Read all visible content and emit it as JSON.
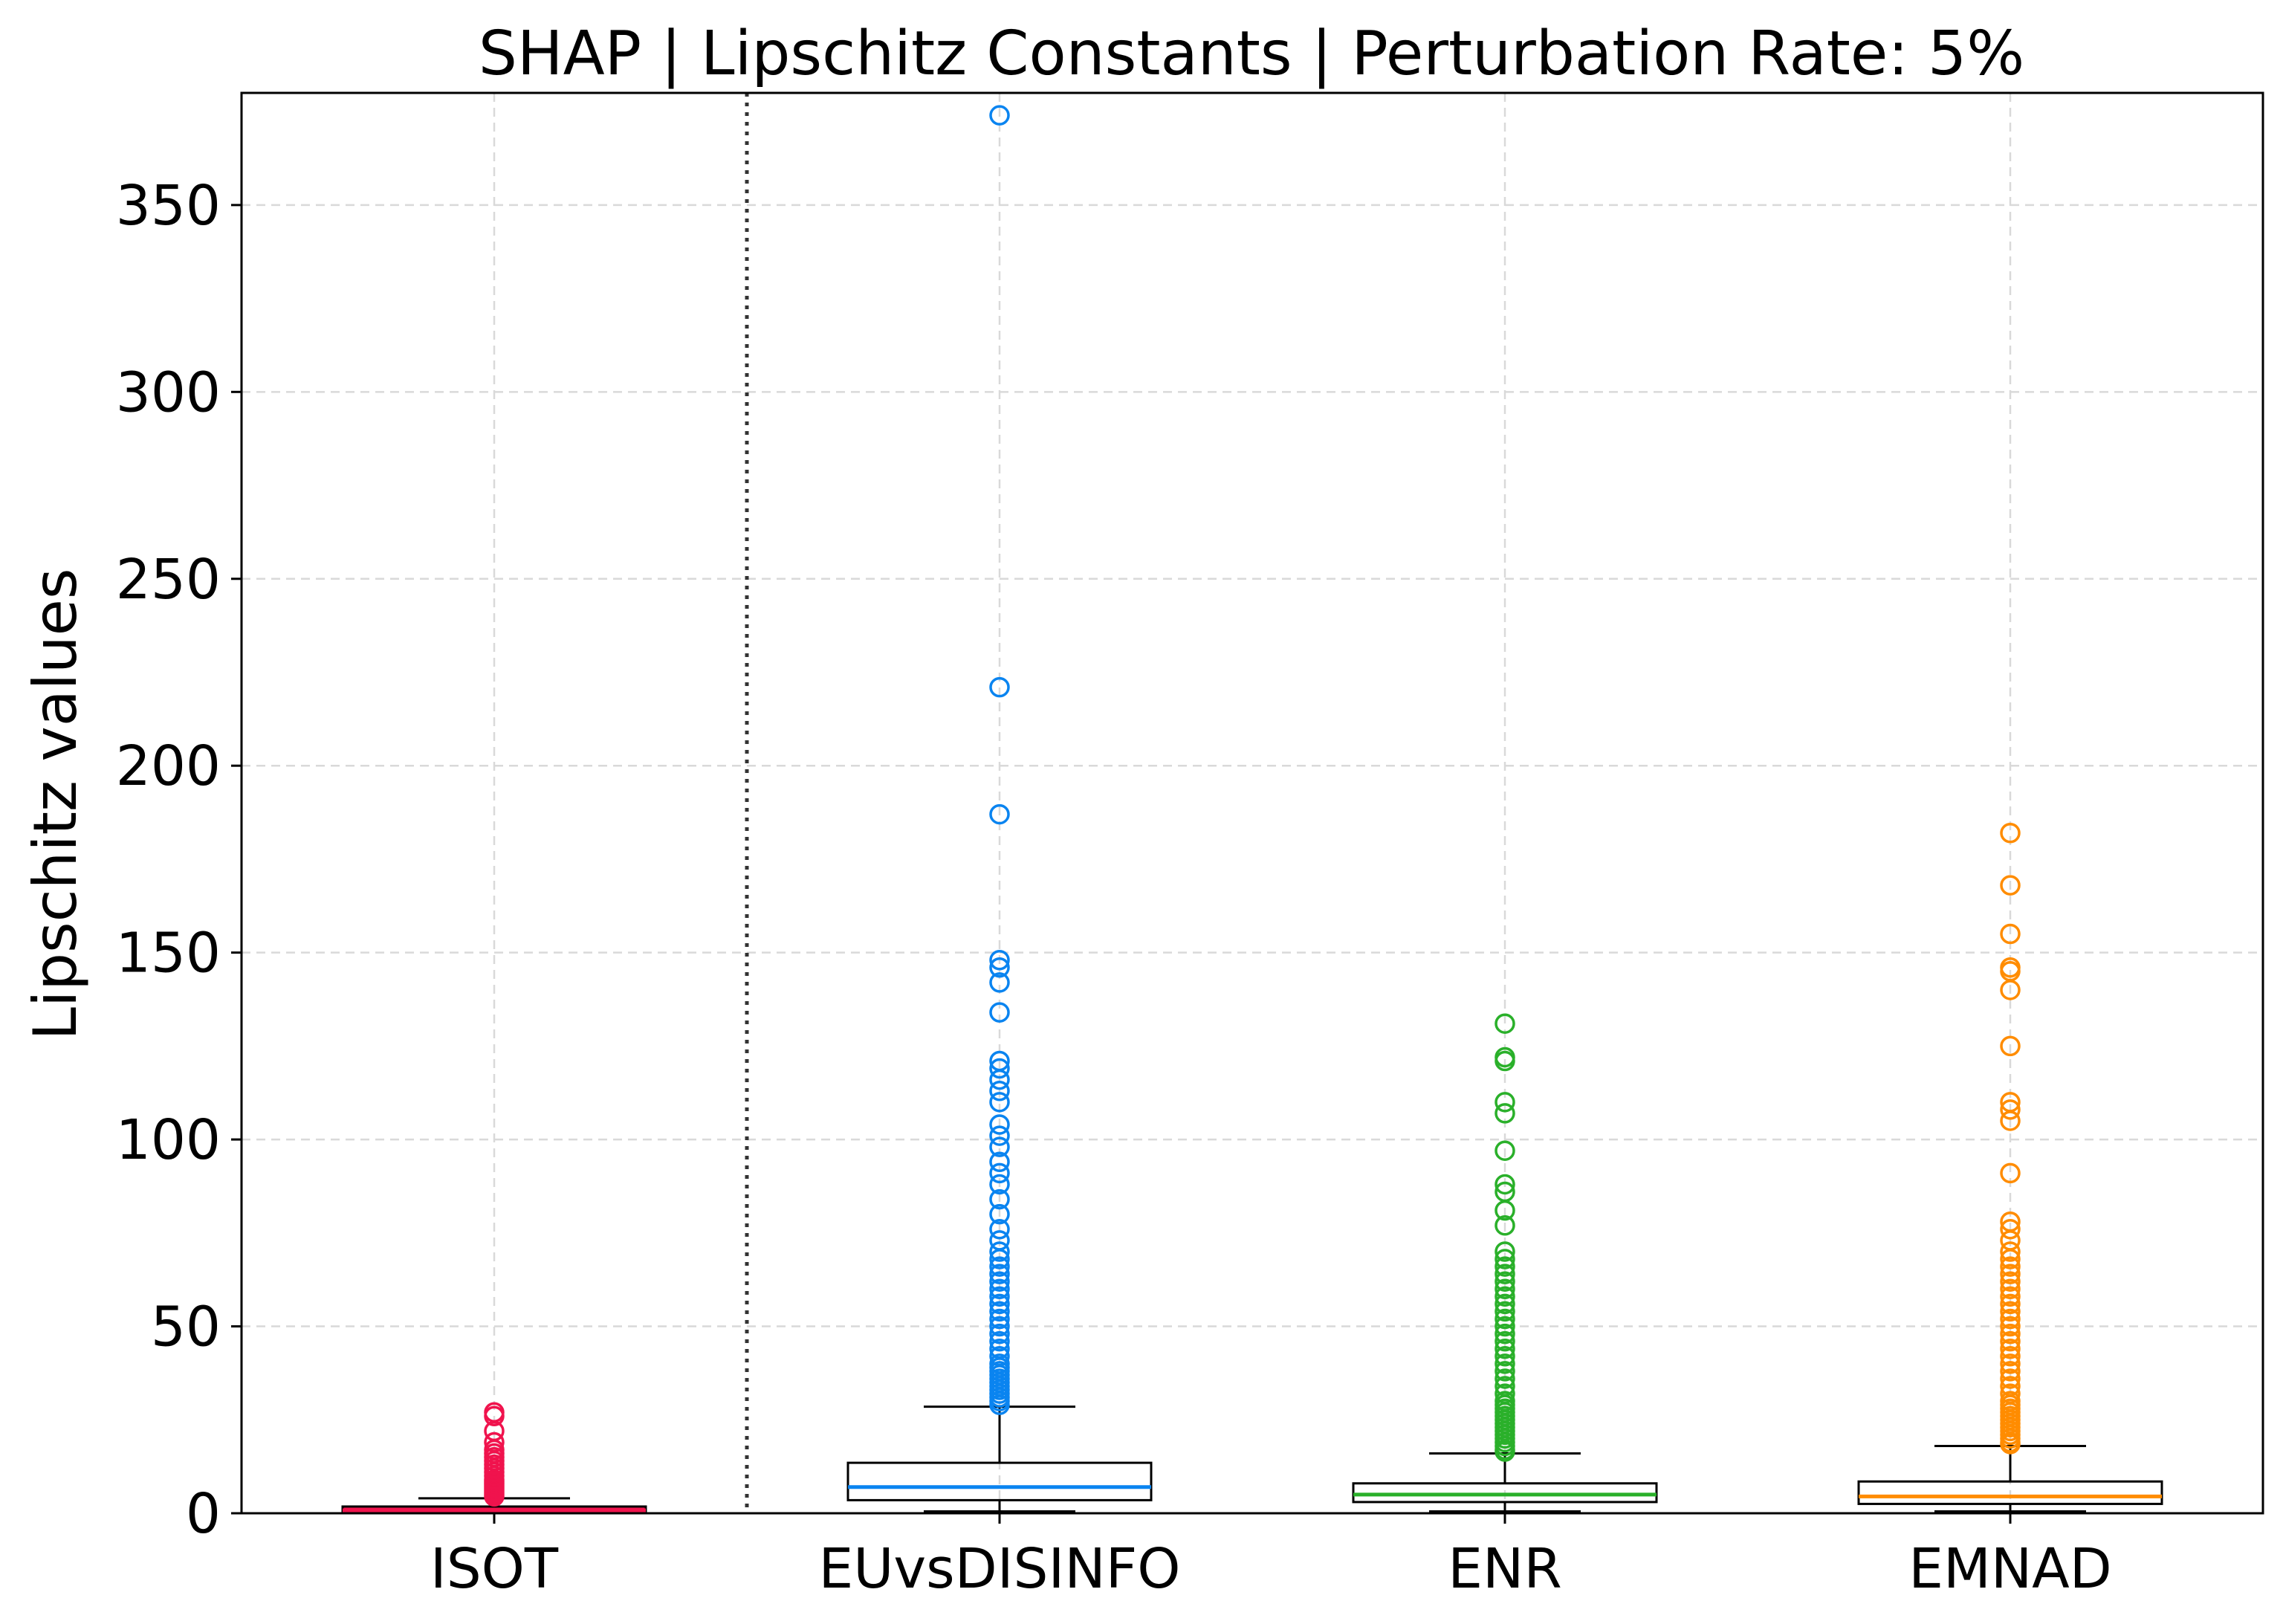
{
  "chart_data": {
    "type": "box",
    "title": "SHAP | Lipschitz Constants | Perturbation Rate: 5%",
    "xlabel": "",
    "ylabel": "Lipschitz values",
    "ylim": [
      0,
      380
    ],
    "yticks": [
      0,
      50,
      100,
      150,
      200,
      250,
      300,
      350
    ],
    "ytick_labels": [
      "0",
      "50",
      "100",
      "150",
      "200",
      "250",
      "300",
      "350"
    ],
    "grid": true,
    "separator_after_category": 0,
    "categories": [
      "ISOT",
      "EUvsDISINFO",
      "ENR",
      "EMNAD"
    ],
    "series": [
      {
        "category": "ISOT",
        "color": "#f0134d",
        "filled": true,
        "whisker_low": 0.0,
        "q1": 0.2,
        "median": 0.8,
        "q3": 1.8,
        "whisker_high": 4.0,
        "outliers": [
          4.5,
          5,
          5.5,
          6,
          6.5,
          7,
          7.5,
          8,
          8.5,
          9,
          10,
          11,
          12,
          13,
          14,
          15,
          16,
          17,
          19,
          22,
          26,
          27
        ]
      },
      {
        "category": "EUvsDISINFO",
        "color": "#0a84f0",
        "filled": false,
        "whisker_low": 0.5,
        "q1": 3.5,
        "median": 7.0,
        "q3": 13.5,
        "whisker_high": 28.5,
        "outliers": [
          29,
          30,
          31,
          32,
          33,
          34,
          35,
          36,
          37,
          38,
          39,
          40,
          42,
          44,
          46,
          48,
          50,
          52,
          54,
          56,
          58,
          60,
          62,
          64,
          66,
          68,
          70,
          73,
          76,
          80,
          84,
          88,
          91,
          94,
          98,
          101,
          104,
          110,
          113,
          116,
          119,
          121,
          134,
          142,
          146,
          148,
          187,
          221,
          374
        ]
      },
      {
        "category": "ENR",
        "color": "#2ab02a",
        "filled": false,
        "whisker_low": 0.5,
        "q1": 3.0,
        "median": 5.0,
        "q3": 8.0,
        "whisker_high": 16.0,
        "outliers": [
          16.5,
          17,
          18,
          19,
          20,
          21,
          22,
          23,
          24,
          25,
          26,
          27,
          28,
          29,
          30,
          32,
          34,
          36,
          38,
          40,
          42,
          44,
          46,
          48,
          50,
          52,
          54,
          56,
          58,
          60,
          62,
          64,
          66,
          68,
          70,
          77,
          81,
          86,
          88,
          97,
          107,
          110,
          121,
          122,
          131
        ]
      },
      {
        "category": "EMNAD",
        "color": "#ff8c00",
        "filled": false,
        "whisker_low": 0.5,
        "q1": 2.5,
        "median": 4.5,
        "q3": 8.5,
        "whisker_high": 18.0,
        "outliers": [
          18.5,
          19,
          20,
          21,
          22,
          23,
          24,
          25,
          26,
          27,
          28,
          29,
          30,
          32,
          34,
          36,
          38,
          40,
          42,
          44,
          46,
          48,
          50,
          52,
          54,
          56,
          58,
          60,
          62,
          64,
          66,
          68,
          70,
          73,
          76,
          78,
          91,
          105,
          108,
          110,
          125,
          140,
          145,
          146,
          155,
          168,
          182
        ]
      }
    ]
  }
}
